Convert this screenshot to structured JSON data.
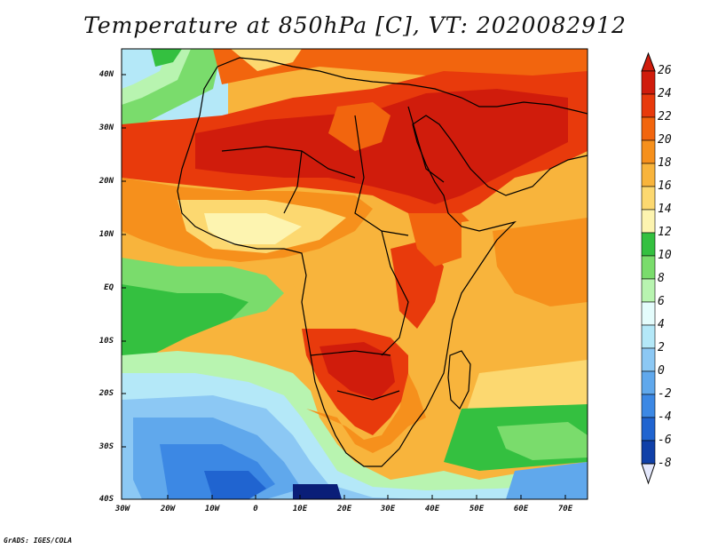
{
  "title": "Temperature at 850hPa [C], VT: 2020082912",
  "map": {
    "lat_labels": [
      "40N",
      "30N",
      "20N",
      "10N",
      "EQ",
      "10S",
      "20S",
      "30S",
      "40S"
    ],
    "lon_labels": [
      "30W",
      "20W",
      "10W",
      "0",
      "10E",
      "20E",
      "30E",
      "40E",
      "50E",
      "60E",
      "70E"
    ]
  },
  "colorbar": {
    "labels": [
      "26",
      "24",
      "22",
      "20",
      "18",
      "16",
      "14",
      "12",
      "10",
      "8",
      "6",
      "4",
      "2",
      "0",
      "-2",
      "-4",
      "-6",
      "-8"
    ],
    "colors": [
      "#d01c0c",
      "#e83a0c",
      "#f2650e",
      "#f6901c",
      "#f8b43c",
      "#fcd870",
      "#fdf4b0",
      "#34c040",
      "#7adc6c",
      "#b8f4b0",
      "#e4fcfc",
      "#b4e8f8",
      "#8cc8f4",
      "#60a8ec",
      "#3c88e4",
      "#2064d0",
      "#1040a8",
      "#0a1e78"
    ],
    "top_arrow_color": "#d01c0c",
    "bottom_arrow_color": "#e4e8fc"
  },
  "credit": "GrADS: IGES/COLA"
}
